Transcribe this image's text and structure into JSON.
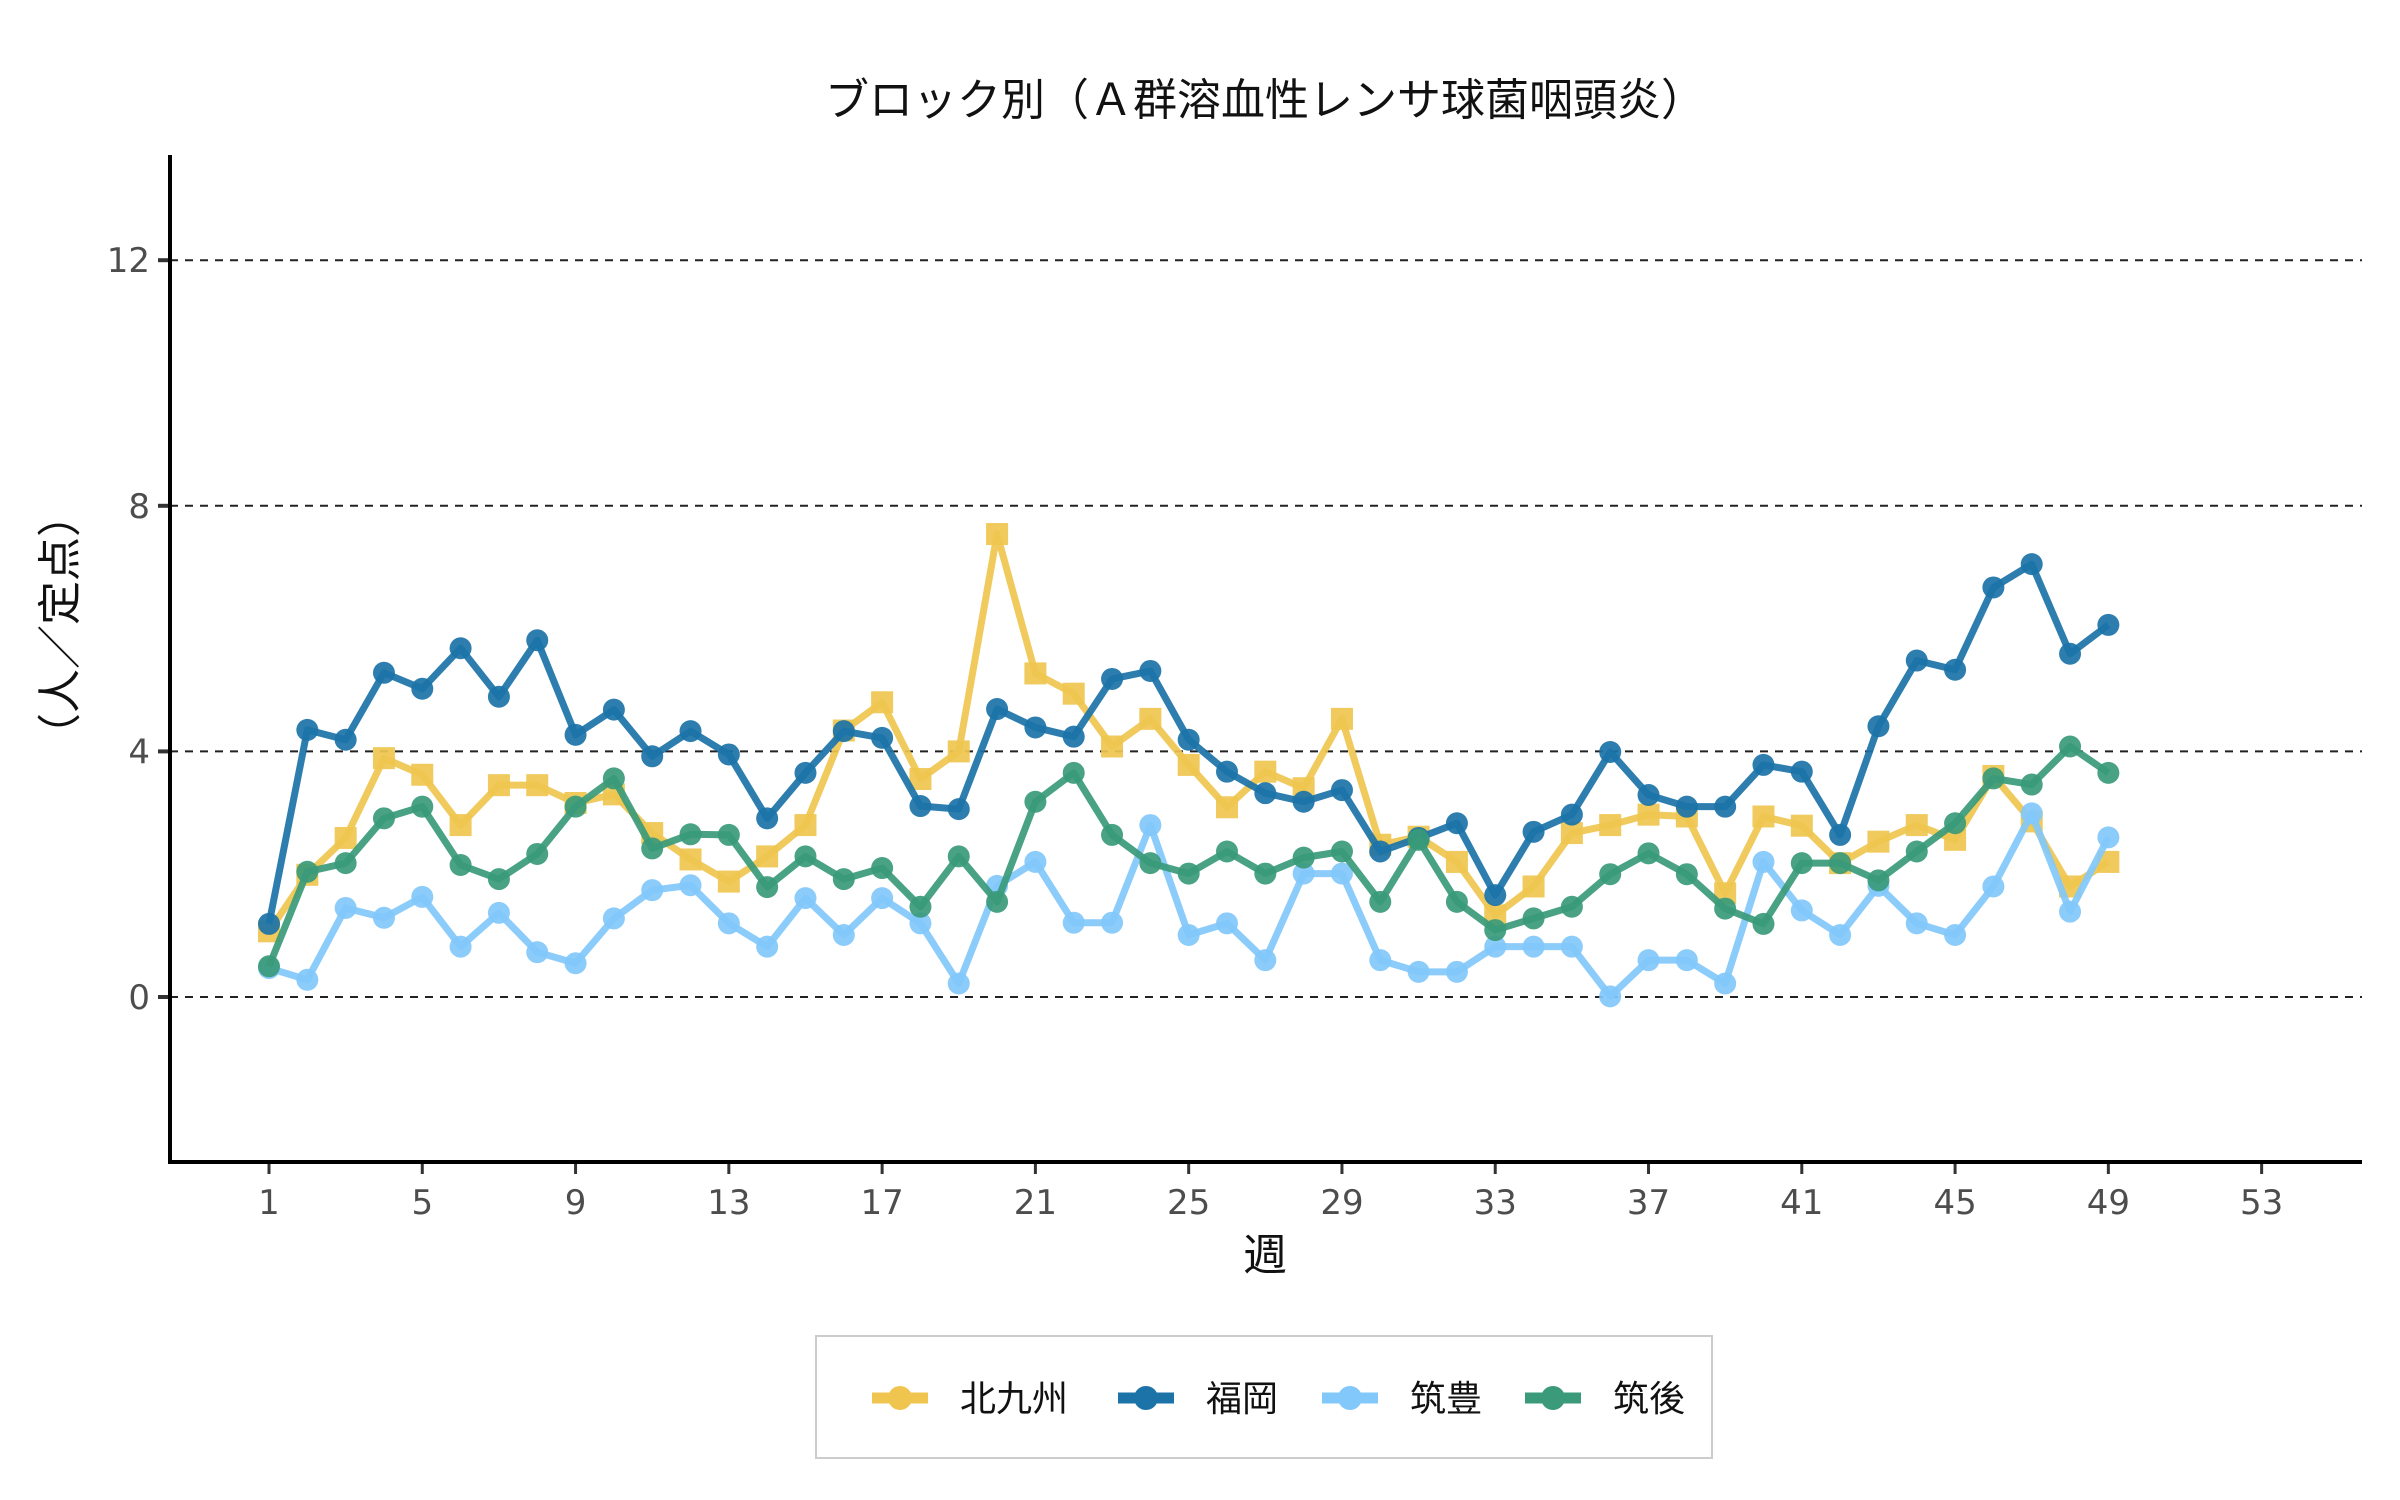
{
  "chart_data": {
    "type": "line",
    "title": "ブロック別（Ａ群溶血性レンサ球菌咽頭炎）",
    "xlabel": "週",
    "ylabel": "（人／定点）",
    "xlim": [
      -1.6,
      55.6
    ],
    "ylim": [
      -0.5,
      12.5
    ],
    "xticks": [
      1,
      5,
      9,
      13,
      17,
      21,
      25,
      29,
      33,
      37,
      41,
      45,
      49,
      53
    ],
    "yticks": [
      0,
      4,
      8,
      12
    ],
    "grid": "horizontal-dashed",
    "legend_position": "bottom",
    "x": [
      1,
      2,
      3,
      4,
      5,
      6,
      7,
      8,
      9,
      10,
      11,
      12,
      13,
      14,
      15,
      16,
      17,
      18,
      19,
      20,
      21,
      22,
      23,
      24,
      25,
      26,
      27,
      28,
      29,
      30,
      31,
      32,
      33,
      34,
      35,
      36,
      37,
      38,
      39,
      40,
      41,
      42,
      43,
      44,
      45,
      46,
      47,
      48,
      49
    ],
    "series": [
      {
        "name": "北九州",
        "color": "#EFC54F",
        "marker": "square",
        "values": [
          1.07,
          1.99,
          2.59,
          3.89,
          3.62,
          2.8,
          3.45,
          3.45,
          3.16,
          3.3,
          2.67,
          2.24,
          1.88,
          2.29,
          2.8,
          4.34,
          4.8,
          3.55,
          4.0,
          7.54,
          5.27,
          4.94,
          4.08,
          4.53,
          3.78,
          3.09,
          3.67,
          3.4,
          4.53,
          2.48,
          2.61,
          2.2,
          1.33,
          1.8,
          2.67,
          2.8,
          2.97,
          2.94,
          1.69,
          2.94,
          2.79,
          2.18,
          2.53,
          2.8,
          2.56,
          3.6,
          2.86,
          1.8,
          2.2
        ]
      },
      {
        "name": "福岡",
        "color": "#1B73A8",
        "marker": "circle",
        "values": [
          1.19,
          4.35,
          4.19,
          5.28,
          5.02,
          5.68,
          4.89,
          5.81,
          4.27,
          4.68,
          3.92,
          4.33,
          3.95,
          2.91,
          3.65,
          4.33,
          4.22,
          3.11,
          3.06,
          4.69,
          4.39,
          4.24,
          5.18,
          5.31,
          4.19,
          3.67,
          3.32,
          3.18,
          3.37,
          2.37,
          2.59,
          2.83,
          1.66,
          2.69,
          2.97,
          3.99,
          3.29,
          3.1,
          3.1,
          3.78,
          3.67,
          2.64,
          4.41,
          5.48,
          5.33,
          6.67,
          7.05,
          5.59,
          6.06
        ]
      },
      {
        "name": "筑豊",
        "color": "#82C8FB",
        "marker": "circle",
        "values": [
          0.47,
          0.28,
          1.45,
          1.29,
          1.63,
          0.82,
          1.37,
          0.73,
          0.55,
          1.28,
          1.74,
          1.82,
          1.2,
          0.82,
          1.61,
          1.01,
          1.61,
          1.2,
          0.22,
          1.81,
          2.2,
          1.21,
          1.21,
          2.8,
          1.01,
          1.2,
          0.6,
          2.01,
          2.01,
          0.6,
          0.41,
          0.41,
          0.82,
          0.82,
          0.82,
          0.01,
          0.6,
          0.6,
          0.22,
          2.2,
          1.41,
          1.01,
          1.81,
          1.2,
          1.01,
          1.8,
          2.99,
          1.39,
          2.6
        ]
      },
      {
        "name": "筑後",
        "color": "#3A9A7A",
        "marker": "circle",
        "values": [
          0.5,
          2.04,
          2.18,
          2.91,
          3.1,
          2.15,
          1.92,
          2.33,
          3.1,
          3.56,
          2.42,
          2.65,
          2.64,
          1.79,
          2.29,
          1.92,
          2.1,
          1.47,
          2.29,
          1.55,
          3.18,
          3.65,
          2.64,
          2.18,
          2.01,
          2.37,
          2.01,
          2.27,
          2.37,
          1.55,
          2.56,
          1.55,
          1.09,
          1.28,
          1.47,
          2.0,
          2.34,
          2.0,
          1.44,
          1.19,
          2.18,
          2.18,
          1.9,
          2.37,
          2.83,
          3.56,
          3.46,
          4.08,
          3.65
        ]
      }
    ]
  }
}
